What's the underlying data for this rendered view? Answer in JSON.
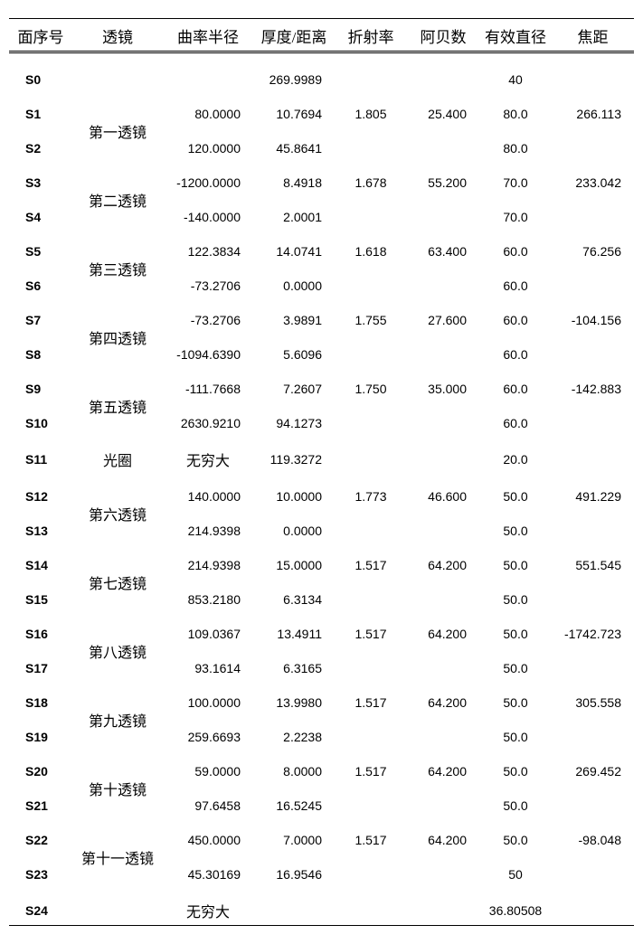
{
  "columns": [
    "面序号",
    "透镜",
    "曲率半径",
    "厚度/距离",
    "折射率",
    "阿贝数",
    "有效直径",
    "焦距"
  ],
  "rows": [
    {
      "s": "S0",
      "l": "",
      "r": "",
      "t": "269.9989",
      "n": "",
      "v": "",
      "d": "40",
      "f": ""
    },
    {
      "s": "S1",
      "l": "第一透镜",
      "span": 2,
      "r": "80.0000",
      "t": "10.7694",
      "n": "1.805",
      "v": "25.400",
      "d": "80.0",
      "f": "266.113"
    },
    {
      "s": "S2",
      "r": "120.0000",
      "t": "45.8641",
      "n": "",
      "v": "",
      "d": "80.0",
      "f": ""
    },
    {
      "s": "S3",
      "l": "第二透镜",
      "span": 2,
      "r": "-1200.0000",
      "t": "8.4918",
      "n": "1.678",
      "v": "55.200",
      "d": "70.0",
      "f": "233.042"
    },
    {
      "s": "S4",
      "r": "-140.0000",
      "t": "2.0001",
      "n": "",
      "v": "",
      "d": "70.0",
      "f": ""
    },
    {
      "s": "S5",
      "l": "第三透镜",
      "span": 2,
      "r": "122.3834",
      "t": "14.0741",
      "n": "1.618",
      "v": "63.400",
      "d": "60.0",
      "f": "76.256"
    },
    {
      "s": "S6",
      "r": "-73.2706",
      "t": "0.0000",
      "n": "",
      "v": "",
      "d": "60.0",
      "f": ""
    },
    {
      "s": "S7",
      "l": "第四透镜",
      "span": 2,
      "r": "-73.2706",
      "t": "3.9891",
      "n": "1.755",
      "v": "27.600",
      "d": "60.0",
      "f": "-104.156"
    },
    {
      "s": "S8",
      "r": "-1094.6390",
      "t": "5.6096",
      "n": "",
      "v": "",
      "d": "60.0",
      "f": ""
    },
    {
      "s": "S9",
      "l": "第五透镜",
      "span": 2,
      "r": "-111.7668",
      "t": "7.2607",
      "n": "1.750",
      "v": "35.000",
      "d": "60.0",
      "f": "-142.883"
    },
    {
      "s": "S10",
      "r": "2630.9210",
      "t": "94.1273",
      "n": "",
      "v": "",
      "d": "60.0",
      "f": ""
    },
    {
      "s": "S11",
      "l": "光圈",
      "span": 1,
      "r": "无穷大",
      "rcjk": true,
      "t": "119.3272",
      "n": "",
      "v": "",
      "d": "20.0",
      "f": ""
    },
    {
      "s": "S12",
      "l": "第六透镜",
      "span": 2,
      "r": "140.0000",
      "t": "10.0000",
      "n": "1.773",
      "v": "46.600",
      "d": "50.0",
      "f": "491.229"
    },
    {
      "s": "S13",
      "r": "214.9398",
      "t": "0.0000",
      "n": "",
      "v": "",
      "d": "50.0",
      "f": ""
    },
    {
      "s": "S14",
      "l": "第七透镜",
      "span": 2,
      "r": "214.9398",
      "t": "15.0000",
      "n": "1.517",
      "v": "64.200",
      "d": "50.0",
      "f": "551.545"
    },
    {
      "s": "S15",
      "r": "853.2180",
      "t": "6.3134",
      "n": "",
      "v": "",
      "d": "50.0",
      "f": ""
    },
    {
      "s": "S16",
      "l": "第八透镜",
      "span": 2,
      "r": "109.0367",
      "t": "13.4911",
      "n": "1.517",
      "v": "64.200",
      "d": "50.0",
      "f": "-1742.723"
    },
    {
      "s": "S17",
      "r": "93.1614",
      "t": "6.3165",
      "n": "",
      "v": "",
      "d": "50.0",
      "f": ""
    },
    {
      "s": "S18",
      "l": "第九透镜",
      "span": 2,
      "r": "100.0000",
      "t": "13.9980",
      "n": "1.517",
      "v": "64.200",
      "d": "50.0",
      "f": "305.558"
    },
    {
      "s": "S19",
      "r": "259.6693",
      "t": "2.2238",
      "n": "",
      "v": "",
      "d": "50.0",
      "f": ""
    },
    {
      "s": "S20",
      "l": "第十透镜",
      "span": 2,
      "r": "59.0000",
      "t": "8.0000",
      "n": "1.517",
      "v": "64.200",
      "d": "50.0",
      "f": "269.452"
    },
    {
      "s": "S21",
      "r": "97.6458",
      "t": "16.5245",
      "n": "",
      "v": "",
      "d": "50.0",
      "f": ""
    },
    {
      "s": "S22",
      "l": "第十一透镜",
      "span": 2,
      "r": "450.0000",
      "t": "7.0000",
      "n": "1.517",
      "v": "64.200",
      "d": "50.0",
      "f": "-98.048"
    },
    {
      "s": "S23",
      "r": "45.30169",
      "t": "16.9546",
      "n": "",
      "v": "",
      "d": "50",
      "f": ""
    },
    {
      "s": "S24",
      "l": "",
      "r": "无穷大",
      "rcjk": true,
      "t": "",
      "n": "",
      "v": "",
      "d": "36.80508",
      "f": "",
      "last": true
    }
  ]
}
